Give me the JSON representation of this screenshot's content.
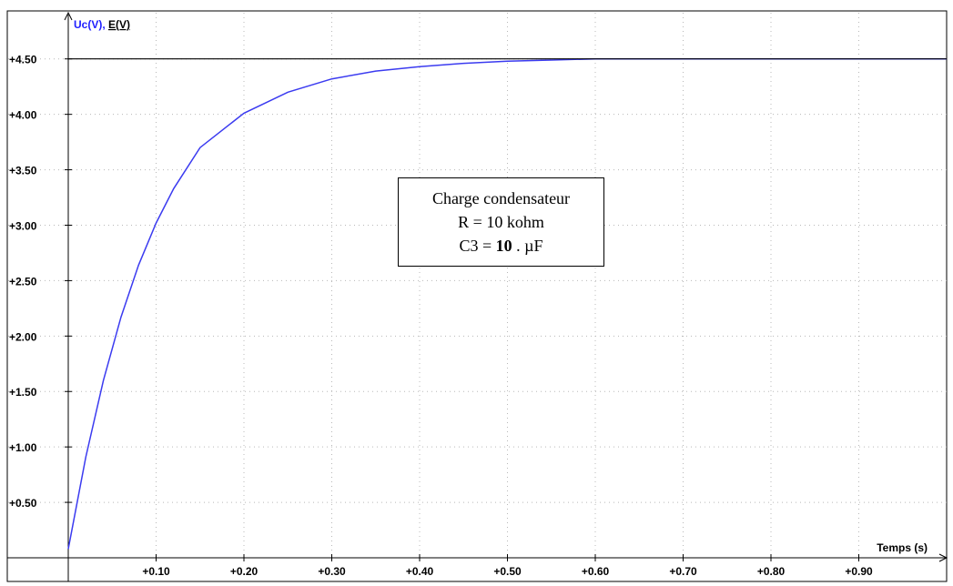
{
  "chart_data": {
    "type": "line",
    "ylabel_parts": [
      "Uc(V)",
      ", ",
      "E(V)"
    ],
    "xlabel": "Temps (s)",
    "xlim": [
      0,
      1.0
    ],
    "ylim": [
      0,
      4.9
    ],
    "x_ticks": [
      0.1,
      0.2,
      0.3,
      0.4,
      0.5,
      0.6,
      0.7,
      0.8,
      0.9
    ],
    "x_tick_labels": [
      "+0.10",
      "+0.20",
      "+0.30",
      "+0.40",
      "+0.50",
      "+0.60",
      "+0.70",
      "+0.80",
      "+0.90"
    ],
    "y_ticks": [
      0.5,
      1.0,
      1.5,
      2.0,
      2.5,
      3.0,
      3.5,
      4.0,
      4.5
    ],
    "y_tick_labels": [
      "+0.50",
      "+1.00",
      "+1.50",
      "+2.00",
      "+2.50",
      "+3.00",
      "+3.50",
      "+4.00",
      "+4.50"
    ],
    "grid": true,
    "series": [
      {
        "name": "Uc(V)",
        "color": "#3b3bf0",
        "x": [
          0,
          0.02,
          0.04,
          0.06,
          0.08,
          0.1,
          0.12,
          0.15,
          0.2,
          0.25,
          0.3,
          0.35,
          0.4,
          0.45,
          0.5,
          0.55,
          0.6,
          0.65,
          0.7,
          0.75,
          0.8,
          0.85,
          0.9,
          0.95,
          1.0
        ],
        "y": [
          0.08,
          0.91,
          1.6,
          2.17,
          2.64,
          3.02,
          3.33,
          3.7,
          4.01,
          4.2,
          4.32,
          4.39,
          4.43,
          4.46,
          4.48,
          4.49,
          4.5,
          4.5,
          4.5,
          4.5,
          4.5,
          4.5,
          4.5,
          4.5,
          4.5
        ]
      },
      {
        "name": "E(V)",
        "color": "#000000",
        "x": [
          0,
          1.0
        ],
        "y": [
          4.5,
          4.5
        ]
      }
    ],
    "annotation": {
      "line1": "Charge condensateur",
      "line2": "R = 10 kohm",
      "line3_prefix": "C3 = ",
      "line3_value": "10",
      "line3_suffix": " . µF"
    }
  }
}
